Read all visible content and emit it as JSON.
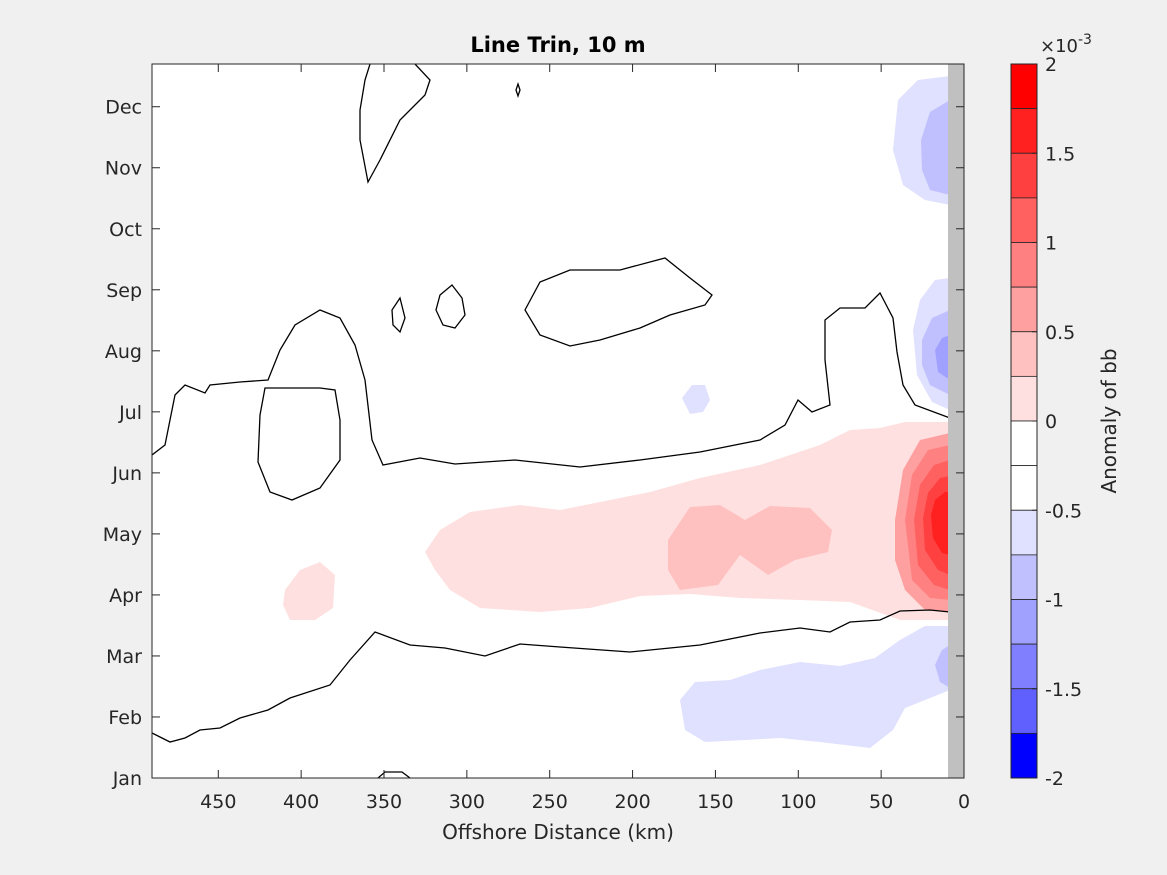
{
  "chart_data": {
    "type": "heatmap",
    "title": "Line Trin, 10 m",
    "xlabel": "Offshore Distance (km)",
    "ylabel": "",
    "x_axis": {
      "lim": [
        490,
        0
      ],
      "reversed": true,
      "ticks": [
        450,
        400,
        350,
        300,
        250,
        200,
        150,
        100,
        50,
        0
      ]
    },
    "y_axis": {
      "lim": [
        1,
        12.7
      ],
      "ticks": [
        "Jan",
        "Feb",
        "Mar",
        "Apr",
        "May",
        "Jun",
        "Jul",
        "Aug",
        "Sep",
        "Oct",
        "Nov",
        "Dec"
      ]
    },
    "colorbar": {
      "label": "Anomaly of bb",
      "exponent_label": "×10",
      "exponent": "-3",
      "range": [
        -2,
        2
      ],
      "step": 0.25,
      "tick_labels": [
        "2",
        "1.5",
        "1",
        "0.5",
        "0",
        "-0.5",
        "-1",
        "-1.5",
        "-2"
      ],
      "levels": [
        {
          "lo": 1.75,
          "hi": 2.0,
          "color": "#ff0000"
        },
        {
          "lo": 1.5,
          "hi": 1.75,
          "color": "#ff2020"
        },
        {
          "lo": 1.25,
          "hi": 1.5,
          "color": "#ff4040"
        },
        {
          "lo": 1.0,
          "hi": 1.25,
          "color": "#ff6060"
        },
        {
          "lo": 0.75,
          "hi": 1.0,
          "color": "#ff8080"
        },
        {
          "lo": 0.5,
          "hi": 0.75,
          "color": "#ffa0a0"
        },
        {
          "lo": 0.25,
          "hi": 0.5,
          "color": "#ffc0c0"
        },
        {
          "lo": 0.0,
          "hi": 0.25,
          "color": "#ffe0e0"
        },
        {
          "lo": -0.25,
          "hi": 0.0,
          "color": "#ffffff"
        },
        {
          "lo": -0.5,
          "hi": -0.25,
          "color": "#ffffff"
        },
        {
          "lo": -0.75,
          "hi": -0.5,
          "color": "#e0e0ff"
        },
        {
          "lo": -1.0,
          "hi": -0.75,
          "color": "#c0c0ff"
        },
        {
          "lo": -1.25,
          "hi": -1.0,
          "color": "#a0a0ff"
        },
        {
          "lo": -1.5,
          "hi": -1.25,
          "color": "#8080ff"
        },
        {
          "lo": -1.75,
          "hi": -1.5,
          "color": "#6060ff"
        },
        {
          "lo": -2.0,
          "hi": -1.75,
          "color": "#0000ff"
        }
      ]
    },
    "land_mask": {
      "x_from_km": 10,
      "x_to_km": 0,
      "color": "#c0c0c0"
    },
    "regions": [
      {
        "name": "spring-positive-outer",
        "anomaly_range": [
          0.25,
          0.5
        ],
        "x_span_km": [
          325,
          10
        ],
        "month_span": [
          "Apr",
          "Jun"
        ]
      },
      {
        "name": "spring-positive-mid",
        "anomaly_range": [
          0.5,
          0.75
        ],
        "x_span_km": [
          165,
          80
        ],
        "month_span": [
          "Apr",
          "May"
        ]
      },
      {
        "name": "spring-positive-core",
        "anomaly_range": [
          1.5,
          2.0
        ],
        "x_span_km": [
          40,
          10
        ],
        "month_span": [
          "Apr",
          "Jun"
        ],
        "peak_anomaly": 1.8
      },
      {
        "name": "small-positive-patch",
        "anomaly_range": [
          0.25,
          0.5
        ],
        "x_span_km": [
          415,
          385
        ],
        "month_span": [
          "Apr",
          "Apr"
        ]
      },
      {
        "name": "winter-negative",
        "anomaly_range": [
          -0.75,
          -0.5
        ],
        "x_span_km": [
          170,
          10
        ],
        "month_span": [
          "Feb",
          "Mar"
        ]
      },
      {
        "name": "summer-negative",
        "anomaly_range": [
          -1.25,
          -0.5
        ],
        "x_span_km": [
          45,
          10
        ],
        "month_span": [
          "Aug",
          "Sep"
        ]
      },
      {
        "name": "autumn-negative",
        "anomaly_range": [
          -1.0,
          -0.5
        ],
        "x_span_km": [
          45,
          10
        ],
        "month_span": [
          "Nov",
          "Dec"
        ]
      }
    ],
    "zero_contour": "black lines at anomaly 0",
    "grid": false
  }
}
